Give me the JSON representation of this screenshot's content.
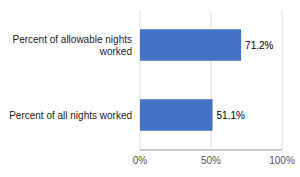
{
  "chart_data": {
    "type": "bar",
    "orientation": "horizontal",
    "categories": [
      "Percent of all nights worked",
      "Percent of allowable nights\nworked"
    ],
    "values": [
      51.1,
      71.2
    ],
    "value_labels": [
      "51.1%",
      "71.2%"
    ],
    "data_labels": true,
    "color": "#4472C4",
    "xlim": [
      0,
      100
    ],
    "xticks": [
      {
        "value": 0,
        "label": "0%"
      },
      {
        "value": 50,
        "label": "50%"
      },
      {
        "value": 100,
        "label": "100%"
      }
    ],
    "grid": true
  }
}
